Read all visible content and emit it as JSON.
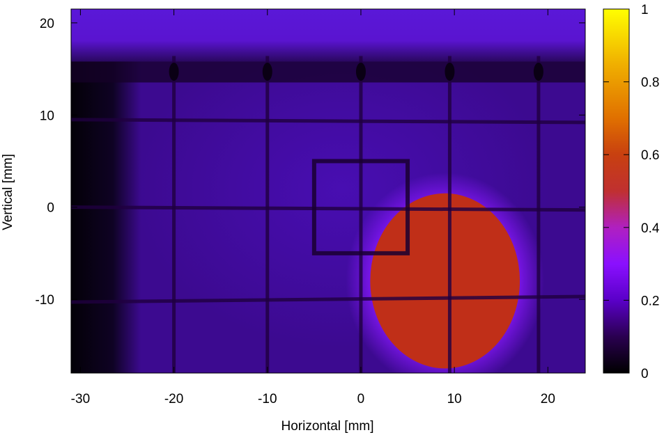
{
  "chart_data": {
    "type": "heatmap",
    "title": "",
    "xlabel": "Horizontal [mm]",
    "ylabel": "Vertical [mm]",
    "xlim": [
      -31,
      24
    ],
    "ylim": [
      -18,
      21.5
    ],
    "x_ticks": [
      -30,
      -20,
      -10,
      0,
      10,
      20
    ],
    "x_tick_labels": [
      "-30",
      "-20",
      "-10",
      "0",
      "10",
      "20"
    ],
    "y_ticks": [
      -10,
      0,
      10,
      20
    ],
    "y_tick_labels": [
      "-10",
      "0",
      "10",
      "20"
    ],
    "colorbar": {
      "range": [
        0,
        1
      ],
      "ticks": [
        0,
        0.2,
        0.4,
        0.6,
        0.8,
        1
      ],
      "tick_labels": [
        "0",
        "0.2",
        "0.4",
        "0.6",
        "0.8",
        "1"
      ],
      "colormap": [
        "#000000",
        "#3a0078",
        "#7f10ff",
        "#b020c0",
        "#c03818",
        "#e07000",
        "#f0b000",
        "#ffff00"
      ]
    },
    "features": {
      "background_level": 0.15,
      "top_band": {
        "y_range": [
          15.8,
          21.5
        ],
        "level": 0.22
      },
      "dark_left_edge_x": -25,
      "grid_lines_vertical_x": [
        -20,
        -10,
        0,
        9.5,
        19
      ],
      "grid_lines_horizontal_y": [
        -10.3,
        0,
        9.5
      ],
      "square_frame": {
        "x": [
          -5,
          5
        ],
        "y": [
          -5,
          5
        ]
      },
      "hot_spot": {
        "center": [
          9,
          -8
        ],
        "radius_x": 8,
        "radius_y": 9.5,
        "level": 0.5
      }
    },
    "grid": false,
    "legend": "colorbar-right"
  }
}
